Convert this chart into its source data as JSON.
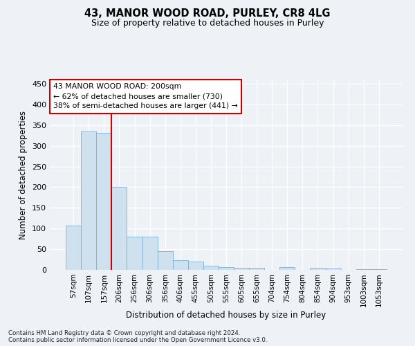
{
  "title1": "43, MANOR WOOD ROAD, PURLEY, CR8 4LG",
  "title2": "Size of property relative to detached houses in Purley",
  "xlabel": "Distribution of detached houses by size in Purley",
  "ylabel": "Number of detached properties",
  "footer1": "Contains HM Land Registry data © Crown copyright and database right 2024.",
  "footer2": "Contains public sector information licensed under the Open Government Licence v3.0.",
  "annotation_line1": "43 MANOR WOOD ROAD: 200sqm",
  "annotation_line2": "← 62% of detached houses are smaller (730)",
  "annotation_line3": "38% of semi-detached houses are larger (441) →",
  "bar_color": "#cfe0ef",
  "bar_edge_color": "#7bafd4",
  "marker_color": "#cc0000",
  "categories": [
    "57sqm",
    "107sqm",
    "157sqm",
    "206sqm",
    "256sqm",
    "306sqm",
    "356sqm",
    "406sqm",
    "455sqm",
    "505sqm",
    "555sqm",
    "605sqm",
    "655sqm",
    "704sqm",
    "754sqm",
    "804sqm",
    "854sqm",
    "904sqm",
    "953sqm",
    "1003sqm",
    "1053sqm"
  ],
  "values": [
    107,
    335,
    332,
    200,
    80,
    80,
    46,
    23,
    20,
    10,
    7,
    5,
    5,
    0,
    6,
    0,
    5,
    3,
    0,
    2,
    2
  ],
  "ylim": [
    0,
    460
  ],
  "yticks": [
    0,
    50,
    100,
    150,
    200,
    250,
    300,
    350,
    400,
    450
  ],
  "background_color": "#eef2f7",
  "grid_color": "#ffffff",
  "annotation_box_color": "#ffffff",
  "annotation_box_edge": "#cc0000",
  "fig_width": 6.0,
  "fig_height": 5.0,
  "dpi": 100
}
